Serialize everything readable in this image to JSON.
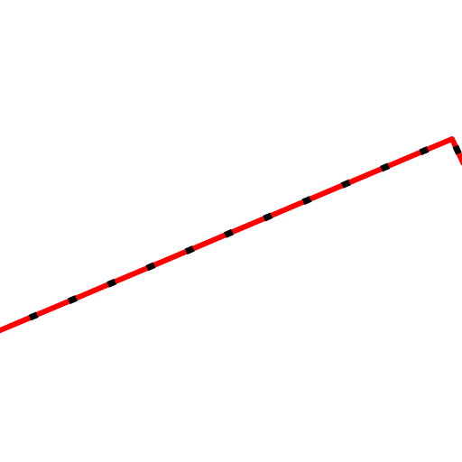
{
  "drawing": {
    "background": "#ffffff",
    "stroke": {
      "primary_color": "#ff0000",
      "dash_color": "#000000",
      "style": "dashed"
    },
    "shape": "polyline"
  }
}
